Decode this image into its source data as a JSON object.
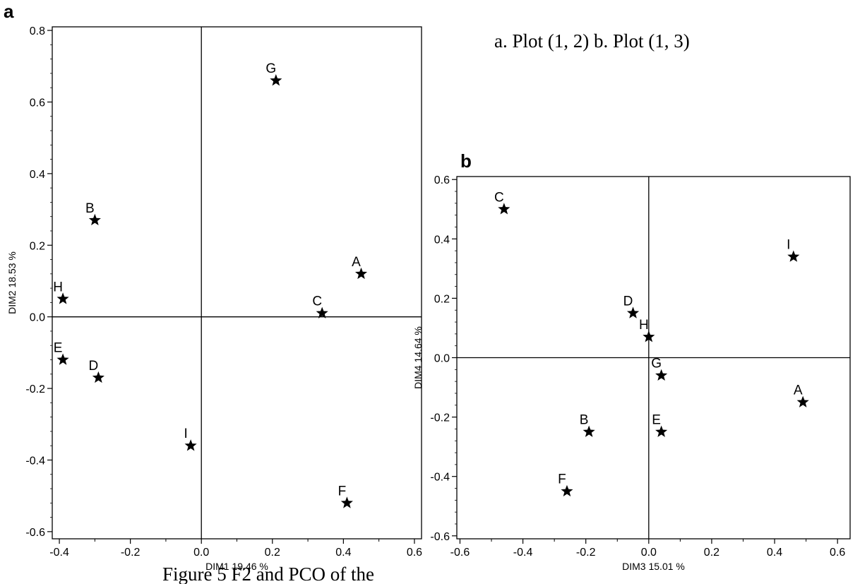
{
  "header": {
    "caption": "a. Plot (1, 2) b. Plot (1, 3)"
  },
  "footer": {
    "caption": "Figure 5  F2 and PCO of the"
  },
  "chart_data": [
    {
      "type": "scatter",
      "panel": "a",
      "xlabel": "DIM1 19.46 %",
      "ylabel": "DIM2 18.53 %",
      "xlim": [
        -0.42,
        0.62
      ],
      "ylim": [
        -0.62,
        0.81
      ],
      "xticks": [
        -0.4,
        -0.2,
        0.0,
        0.2,
        0.4,
        0.6
      ],
      "yticks": [
        -0.6,
        -0.4,
        -0.2,
        0.0,
        0.2,
        0.4,
        0.6,
        0.8
      ],
      "marker": "star",
      "grid": false,
      "points": [
        {
          "label": "G",
          "x": 0.21,
          "y": 0.66
        },
        {
          "label": "B",
          "x": -0.3,
          "y": 0.27
        },
        {
          "label": "A",
          "x": 0.45,
          "y": 0.12
        },
        {
          "label": "H",
          "x": -0.39,
          "y": 0.05
        },
        {
          "label": "C",
          "x": 0.34,
          "y": 0.01
        },
        {
          "label": "E",
          "x": -0.39,
          "y": -0.12
        },
        {
          "label": "D",
          "x": -0.29,
          "y": -0.17
        },
        {
          "label": "I",
          "x": -0.03,
          "y": -0.36
        },
        {
          "label": "F",
          "x": 0.41,
          "y": -0.52
        }
      ]
    },
    {
      "type": "scatter",
      "panel": "b",
      "xlabel": "DIM3 15.01 %",
      "ylabel": "DIM4 14.64 %",
      "xlim": [
        -0.61,
        0.64
      ],
      "ylim": [
        -0.61,
        0.61
      ],
      "xticks": [
        -0.6,
        -0.4,
        -0.2,
        0.0,
        0.2,
        0.4,
        0.6
      ],
      "yticks": [
        -0.6,
        -0.4,
        -0.2,
        0.0,
        0.2,
        0.4,
        0.6
      ],
      "marker": "star",
      "grid": false,
      "points": [
        {
          "label": "C",
          "x": -0.46,
          "y": 0.5
        },
        {
          "label": "I",
          "x": 0.46,
          "y": 0.34
        },
        {
          "label": "D",
          "x": -0.05,
          "y": 0.15
        },
        {
          "label": "H",
          "x": 0.0,
          "y": 0.07
        },
        {
          "label": "G",
          "x": 0.04,
          "y": -0.06
        },
        {
          "label": "A",
          "x": 0.49,
          "y": -0.15
        },
        {
          "label": "B",
          "x": -0.19,
          "y": -0.25
        },
        {
          "label": "E",
          "x": 0.04,
          "y": -0.25
        },
        {
          "label": "F",
          "x": -0.26,
          "y": -0.45
        }
      ]
    }
  ]
}
